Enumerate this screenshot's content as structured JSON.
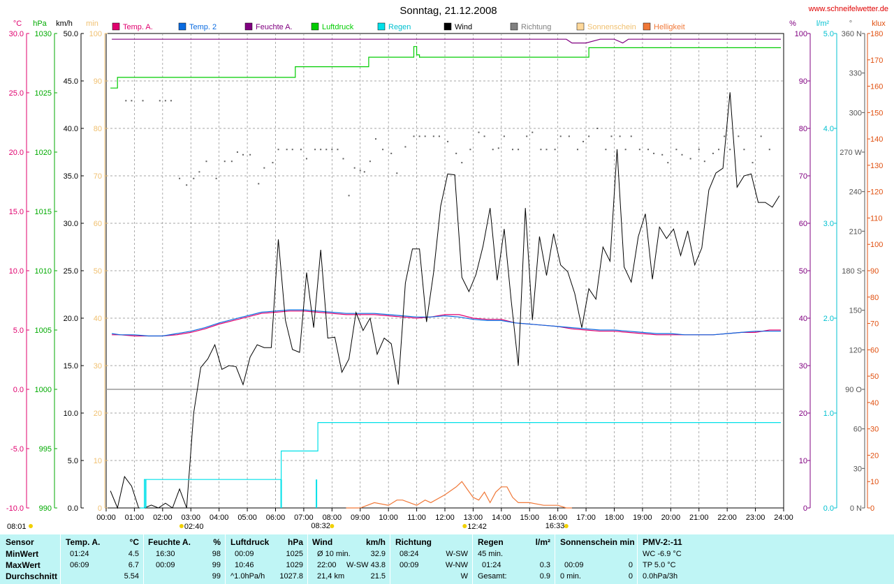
{
  "chart_data": {
    "type": "line",
    "title": "Sonntag, 21.12.2008",
    "watermark": "www.schneifelwetter.de",
    "legend": [
      {
        "label": "Temp. A.",
        "color": "#e0006e"
      },
      {
        "label": "Temp. 2",
        "color": "#0a6be0"
      },
      {
        "label": "Feuchte A.",
        "color": "#800080"
      },
      {
        "label": "Luftdruck",
        "color": "#00cc00"
      },
      {
        "label": "Regen",
        "color": "#00e0e8"
      },
      {
        "label": "Wind",
        "color": "#000000"
      },
      {
        "label": "Richtung",
        "color": "#808080"
      },
      {
        "label": "Sonnenschein",
        "color": "#ffd89a"
      },
      {
        "label": "Helligkeit",
        "color": "#f07838"
      }
    ],
    "axes": {
      "temp_unit": "°C",
      "pressure_unit": "hPa",
      "wind_unit": "km/h",
      "sun_unit": "min",
      "humidity_unit": "%",
      "rain_unit": "l/m²",
      "direction_unit": "°",
      "light_unit": "klux",
      "temp_range": [
        -10,
        30
      ],
      "pressure_range": [
        990,
        1030
      ],
      "wind_range": [
        0,
        50
      ],
      "sun_range": [
        0,
        100
      ],
      "humidity_range": [
        0,
        100
      ],
      "rain_range": [
        0,
        5
      ],
      "direction_range": [
        0,
        360
      ],
      "light_range": [
        0,
        180
      ],
      "temp_ticks": [
        "30.0",
        "25.0",
        "20.0",
        "15.0",
        "10.0",
        "5.0",
        "0.0",
        "-5.0",
        "-10.0"
      ],
      "pressure_ticks": [
        "1030",
        "1025",
        "1020",
        "1015",
        "1010",
        "1005",
        "1000",
        "995",
        "990"
      ],
      "wind_ticks": [
        "50.0",
        "45.0",
        "40.0",
        "35.0",
        "30.0",
        "25.0",
        "20.0",
        "15.0",
        "10.0",
        "5.0",
        "0.0"
      ],
      "sun_ticks": [
        "100",
        "90",
        "80",
        "70",
        "60",
        "50",
        "40",
        "30",
        "20",
        "10",
        "0"
      ],
      "humidity_ticks": [
        "100",
        "90",
        "80",
        "70",
        "60",
        "50",
        "40",
        "30",
        "20",
        "10",
        "0"
      ],
      "rain_ticks": [
        "5.0",
        "4.0",
        "3.0",
        "2.0",
        "1.0",
        "0.0"
      ],
      "direction_ticks": [
        "360 N",
        "330",
        "300",
        "270 W",
        "240",
        "210",
        "180 S",
        "150",
        "120",
        "90 O",
        "60",
        "30",
        "0 N"
      ],
      "light_ticks": [
        "180",
        "170",
        "160",
        "150",
        "140",
        "130",
        "120",
        "110",
        "100",
        "90",
        "80",
        "70",
        "60",
        "50",
        "40",
        "30",
        "20",
        "10",
        "0"
      ],
      "x_ticks": [
        "00:00",
        "01:00",
        "02:00",
        "03:00",
        "04:00",
        "05:00",
        "06:00",
        "07:00",
        "08:00",
        "09:00",
        "10:00",
        "11:00",
        "12:00",
        "13:00",
        "14:00",
        "15:00",
        "16:00",
        "17:00",
        "18:00",
        "19:00",
        "20:00",
        "21:00",
        "22:00",
        "23:00",
        "24:00"
      ],
      "x_range_hours": [
        0,
        24
      ]
    },
    "markers": [
      {
        "label": "08:01",
        "row": 1,
        "hour": 0.0
      },
      {
        "label": "02:40",
        "row": 1,
        "hour": 2.67
      },
      {
        "label": "08:32",
        "row": 2,
        "hour": 8.0
      },
      {
        "label": "12:42",
        "row": 1,
        "hour": 12.7
      },
      {
        "label": "16:33",
        "row": 2,
        "hour": 16.3
      }
    ],
    "series": [
      {
        "name": "Temp. A.",
        "axis": "temp",
        "color": "#e0006e",
        "x": [
          0.2,
          0.5,
          1,
          1.5,
          2,
          2.5,
          3,
          3.5,
          4,
          4.5,
          5,
          5.5,
          6,
          6.5,
          7,
          7.5,
          8,
          8.5,
          9,
          9.5,
          10,
          10.5,
          11,
          11.5,
          12,
          12.5,
          13,
          13.5,
          14,
          14.5,
          15,
          15.5,
          16,
          16.5,
          17,
          17.5,
          18,
          18.5,
          19,
          19.5,
          20,
          20.5,
          21,
          21.5,
          22,
          22.5,
          23,
          23.5,
          23.9
        ],
        "y": [
          4.6,
          4.6,
          4.5,
          4.5,
          4.5,
          4.6,
          4.8,
          5.1,
          5.5,
          5.8,
          6.1,
          6.4,
          6.5,
          6.6,
          6.6,
          6.5,
          6.4,
          6.3,
          6.3,
          6.3,
          6.2,
          6.1,
          6.0,
          6.1,
          6.3,
          6.3,
          6.0,
          5.9,
          5.9,
          5.6,
          5.5,
          5.4,
          5.3,
          5.1,
          5.0,
          4.9,
          4.9,
          4.8,
          4.7,
          4.6,
          4.6,
          4.6,
          4.6,
          4.6,
          4.7,
          4.8,
          4.8,
          5.0,
          5.0
        ]
      },
      {
        "name": "Temp. 2",
        "axis": "temp",
        "color": "#0a6be0",
        "x": [
          0.2,
          0.5,
          1,
          1.5,
          2,
          2.5,
          3,
          3.5,
          4,
          4.5,
          5,
          5.5,
          6,
          6.5,
          7,
          7.5,
          8,
          8.5,
          9,
          9.5,
          10,
          10.5,
          11,
          11.5,
          12,
          12.5,
          13,
          13.5,
          14,
          14.5,
          15,
          15.5,
          16,
          16.5,
          17,
          17.5,
          18,
          18.5,
          19,
          19.5,
          20,
          20.5,
          21,
          21.5,
          22,
          22.5,
          23,
          23.5,
          23.9
        ],
        "y": [
          4.7,
          4.6,
          4.6,
          4.5,
          4.5,
          4.7,
          4.9,
          5.2,
          5.6,
          5.9,
          6.2,
          6.5,
          6.6,
          6.7,
          6.7,
          6.6,
          6.5,
          6.4,
          6.4,
          6.4,
          6.3,
          6.2,
          6.1,
          6.1,
          6.2,
          6.1,
          5.9,
          5.8,
          5.8,
          5.6,
          5.5,
          5.4,
          5.3,
          5.2,
          5.1,
          5.0,
          5.0,
          4.9,
          4.8,
          4.7,
          4.7,
          4.6,
          4.6,
          4.6,
          4.7,
          4.8,
          4.9,
          4.9,
          4.9
        ]
      },
      {
        "name": "Feuchte A.",
        "axis": "humidity",
        "color": "#800080",
        "x": [
          0.2,
          16.3,
          16.5,
          17,
          17.5,
          18,
          18.3,
          18.5,
          19,
          20,
          21,
          22,
          23,
          23.9
        ],
        "y": [
          98.8,
          98.8,
          98,
          98,
          98.8,
          98.8,
          98,
          98.8,
          98.8,
          98.8,
          98.8,
          98.8,
          98.8,
          98.8
        ]
      },
      {
        "name": "Luftdruck",
        "axis": "pressure",
        "color": "#00cc00",
        "x": [
          0.15,
          0.4,
          6.5,
          6.7,
          8.9,
          9.3,
          10.5,
          10.9,
          11,
          11.1,
          16.8,
          17.1,
          23.9
        ],
        "y": [
          1025.4,
          1026.3,
          1026.3,
          1027.2,
          1027.2,
          1028.0,
          1028.0,
          1028.9,
          1028.2,
          1028.0,
          1028.0,
          1028.8,
          1028.8
        ]
      },
      {
        "name": "Wind",
        "axis": "wind",
        "color": "#000000",
        "x": [
          0.15,
          0.4,
          0.65,
          0.9,
          1.15,
          1.35,
          1.6,
          1.85,
          2.1,
          2.35,
          2.6,
          2.85,
          3.1,
          3.35,
          3.6,
          3.85,
          4.1,
          4.35,
          4.6,
          4.85,
          5.1,
          5.35,
          5.6,
          5.85,
          6.1,
          6.35,
          6.6,
          6.85,
          7.1,
          7.35,
          7.6,
          7.85,
          8.1,
          8.35,
          8.6,
          8.85,
          9.1,
          9.35,
          9.6,
          9.85,
          10.1,
          10.35,
          10.6,
          10.85,
          11.1,
          11.35,
          11.6,
          11.85,
          12.1,
          12.35,
          12.6,
          12.85,
          13.1,
          13.35,
          13.6,
          13.85,
          14.1,
          14.35,
          14.6,
          14.85,
          15.1,
          15.35,
          15.6,
          15.85,
          16.1,
          16.35,
          16.6,
          16.85,
          17.1,
          17.35,
          17.6,
          17.85,
          18.1,
          18.35,
          18.6,
          18.85,
          19.1,
          19.35,
          19.6,
          19.85,
          20.1,
          20.35,
          20.6,
          20.85,
          21.1,
          21.35,
          21.6,
          21.85,
          22.1,
          22.35,
          22.6,
          22.85,
          23.1,
          23.35,
          23.6,
          23.85
        ],
        "y": [
          1.8,
          0.0,
          3.3,
          2.3,
          0.0,
          0.0,
          0.3,
          0.0,
          0.5,
          0.0,
          2.0,
          0.0,
          10.0,
          14.8,
          15.7,
          17.2,
          14.6,
          15.0,
          14.9,
          13.0,
          15.9,
          17.2,
          16.9,
          16.9,
          28.3,
          19.8,
          16.7,
          16.4,
          24.8,
          19.0,
          27.2,
          17.9,
          18.0,
          14.3,
          15.7,
          20.6,
          18.7,
          20.0,
          16.2,
          17.9,
          17.3,
          13.0,
          23.7,
          27.3,
          27.3,
          19.6,
          24.8,
          31.8,
          35.2,
          35.1,
          24.3,
          22.8,
          24.6,
          27.6,
          31.6,
          24.0,
          29.4,
          21.8,
          15.0,
          31.6,
          19.8,
          28.6,
          24.5,
          28.9,
          25.6,
          24.9,
          22.6,
          19.0,
          23.1,
          22.0,
          27.5,
          26.0,
          37.8,
          25.4,
          23.8,
          28.6,
          31.0,
          24.1,
          29.6,
          28.4,
          29.4,
          26.6,
          29.2,
          25.6,
          27.4,
          33.5,
          35.3,
          35.8,
          43.8,
          33.8,
          35.0,
          35.2,
          32.2,
          32.2,
          31.7,
          32.9
        ]
      },
      {
        "name": "Regen",
        "axis": "rain",
        "color": "#00e0e8",
        "x": [
          1.2,
          1.35,
          6.0,
          6.2,
          7.0,
          7.5,
          23.9
        ],
        "y": [
          0.0,
          0.3,
          0.3,
          0.6,
          0.6,
          0.9,
          0.9
        ],
        "spikes": [
          {
            "hour": 1.4,
            "value": 0.3
          },
          {
            "hour": 6.2,
            "value": 0.3
          },
          {
            "hour": 7.45,
            "value": 0.3
          }
        ]
      },
      {
        "name": "Helligkeit",
        "axis": "light",
        "color": "#f07838",
        "x": [
          8.5,
          9,
          9.5,
          10,
          10.3,
          10.5,
          11,
          11.3,
          11.5,
          12,
          12.4,
          12.6,
          12.8,
          13,
          13.2,
          13.4,
          13.6,
          13.8,
          14,
          14.2,
          14.4,
          14.6,
          15,
          15.5,
          16,
          16.3,
          16.5
        ],
        "y": [
          0,
          0,
          2,
          1,
          3,
          3,
          1,
          3,
          2,
          5,
          8,
          10,
          7,
          4,
          3,
          6,
          2,
          6,
          8,
          8,
          4,
          2,
          2,
          1,
          1,
          0,
          0
        ]
      },
      {
        "name": "Richtung",
        "axis": "direction",
        "color": "#606060",
        "dots": true,
        "x": [
          0.7,
          0.9,
          1.3,
          1.9,
          2.1,
          2.3,
          2.6,
          2.85,
          3.1,
          3.3,
          3.55,
          3.9,
          4.2,
          4.45,
          4.65,
          4.85,
          5.1,
          5.4,
          5.6,
          5.9,
          6.1,
          6.4,
          6.6,
          6.9,
          7.1,
          7.4,
          7.6,
          7.8,
          8.0,
          8.2,
          8.4,
          8.6,
          8.8,
          9.0,
          9.15,
          9.35,
          9.55,
          9.8,
          10.1,
          10.3,
          10.6,
          10.9,
          11.1,
          11.3,
          11.6,
          11.8,
          12.1,
          12.4,
          12.6,
          12.9,
          13.2,
          13.4,
          13.7,
          13.9,
          14.1,
          14.4,
          14.6,
          14.9,
          15.1,
          15.4,
          15.6,
          15.9,
          16.1,
          16.4,
          16.7,
          16.9,
          17.1,
          17.4,
          17.7,
          17.9,
          18.2,
          18.4,
          18.6,
          18.9,
          19.2,
          19.4,
          19.7,
          19.9,
          20.2,
          20.4,
          20.7,
          21.0,
          21.2,
          21.5,
          21.7,
          21.9,
          22.1,
          22.4,
          22.6,
          22.9,
          23.2,
          23.5
        ],
        "y": [
          309,
          309,
          309,
          309,
          309,
          309,
          250,
          245,
          250,
          255,
          263,
          250,
          263,
          263,
          270,
          268,
          268,
          246,
          258,
          262,
          272,
          272,
          272,
          272,
          265,
          272,
          272,
          272,
          272,
          272,
          265,
          237,
          258,
          256,
          255,
          263,
          280,
          272,
          269,
          254,
          274,
          282,
          282,
          282,
          282,
          282,
          278,
          269,
          262,
          272,
          285,
          282,
          272,
          273,
          282,
          272,
          272,
          282,
          285,
          272,
          272,
          272,
          282,
          282,
          272,
          278,
          282,
          288,
          272,
          282,
          282,
          272,
          282,
          272,
          272,
          269,
          268,
          262,
          272,
          268,
          265,
          272,
          263,
          269,
          272,
          282,
          272,
          282,
          272,
          262,
          282,
          272
        ]
      }
    ],
    "stats": {
      "header": {
        "sensor": "Sensor",
        "temp": "Temp. A.",
        "temp_unit": "°C",
        "hum": "Feuchte A.",
        "hum_unit": "%",
        "press": "Luftdruck",
        "press_unit": "hPa",
        "wind": "Wind",
        "wind_unit": "km/h",
        "dir": "Richtung",
        "rain": "Regen",
        "rain_unit": "l/m²",
        "sun": "Sonnenschein min",
        "pmv": "PMV-2:-11"
      },
      "rows": [
        {
          "label": "MinWert",
          "temp_time": "01:24",
          "temp_val": "4.5",
          "hum_time": "16:30",
          "hum_val": "98",
          "press_time": "00:09",
          "press_val": "1025",
          "wind_a": "Ø 10 min.",
          "wind_b": "",
          "wind_val": "32.9",
          "dir_time": "08:24",
          "dir_val": "W-SW",
          "rain_a": "45 min.",
          "rain_val": "",
          "sun_a": "",
          "sun_val": "",
          "pmv": "WC -6.9 °C"
        },
        {
          "label": "MaxWert",
          "temp_time": "06:09",
          "temp_val": "6.7",
          "hum_time": "00:09",
          "hum_val": "99",
          "press_time": "10:46",
          "press_val": "1029",
          "wind_a": "22:00",
          "wind_b": "W-SW",
          "wind_val": "43.8",
          "dir_time": "00:09",
          "dir_val": "W-NW",
          "rain_a": "01:24",
          "rain_val": "0.3",
          "sun_a": "00:09",
          "sun_val": "0",
          "pmv": "TP 5.0 °C"
        },
        {
          "label": "Durchschnitt",
          "temp_time": "",
          "temp_val": "5.54",
          "hum_time": "",
          "hum_val": "99",
          "press_time": "^1.0hPa/h",
          "press_val": "1027.8",
          "wind_a": "21,4 km",
          "wind_b": "",
          "wind_val": "21.5",
          "dir_time": "",
          "dir_val": "W",
          "rain_a": "Gesamt:",
          "rain_val": "0.9",
          "sun_a": "0 min.",
          "sun_val": "0",
          "pmv": "0.0hPa/3h"
        }
      ]
    }
  }
}
